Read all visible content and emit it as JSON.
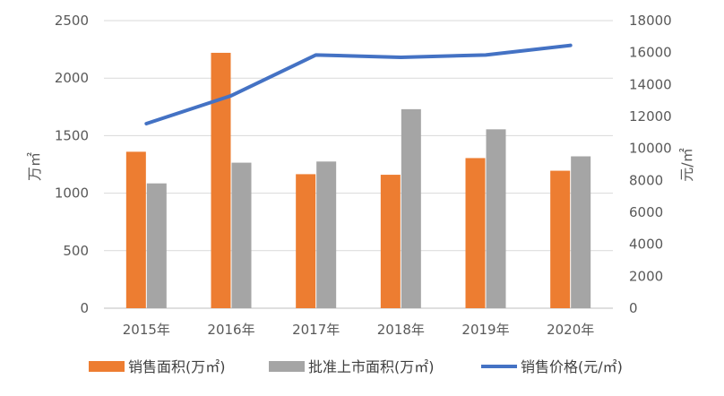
{
  "chart_data": {
    "type": "bar",
    "categories": [
      "2015年",
      "2016年",
      "2017年",
      "2018年",
      "2019年",
      "2020年"
    ],
    "series": [
      {
        "name": "销售面积(万㎡)",
        "type": "bar",
        "axis": "left",
        "color": "#ED7D31",
        "values": [
          1360,
          2220,
          1165,
          1160,
          1305,
          1195
        ]
      },
      {
        "name": "批准上市面积(万㎡)",
        "type": "bar",
        "axis": "left",
        "color": "#A5A5A5",
        "values": [
          1085,
          1265,
          1275,
          1730,
          1555,
          1320
        ]
      },
      {
        "name": "销售价格(元/㎡)",
        "type": "line",
        "axis": "right",
        "color": "#4472C4",
        "values": [
          11550,
          13300,
          15850,
          15700,
          15850,
          16450
        ]
      }
    ],
    "ylabel": "万㎡",
    "y2label": "元/㎡",
    "ylim": [
      0,
      2500
    ],
    "yticks": [
      0,
      500,
      1000,
      1500,
      2000,
      2500
    ],
    "y2lim": [
      0,
      18000
    ],
    "y2ticks": [
      0,
      2000,
      4000,
      6000,
      8000,
      10000,
      12000,
      14000,
      16000,
      18000
    ],
    "grid": true,
    "legend": "bottom"
  }
}
